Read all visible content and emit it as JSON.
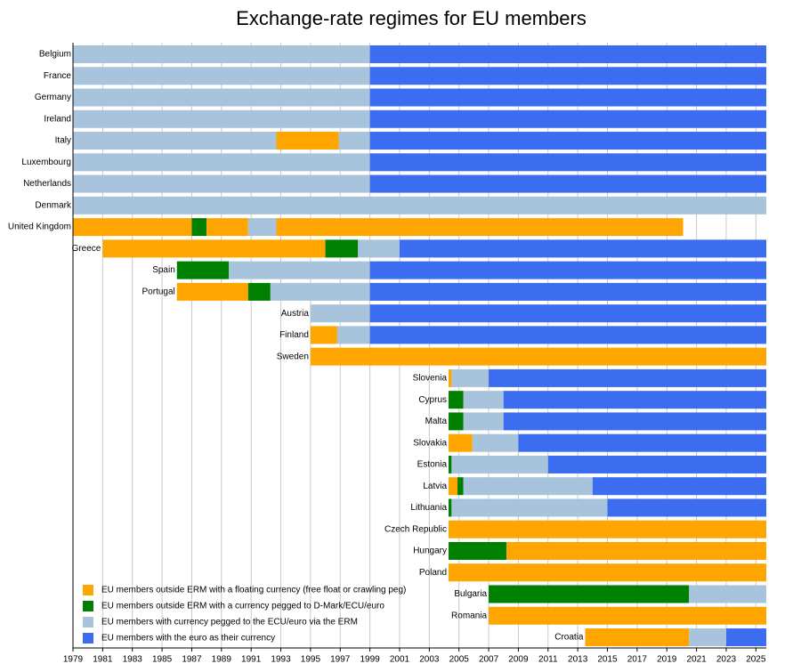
{
  "chart_data": {
    "type": "timeline",
    "title": "Exchange-rate regimes for EU members",
    "series": [
      {
        "name": "EU members outside ERM with a floating currency (free float or crawling peg)",
        "color": "#ffa500"
      },
      {
        "name": "EU members outside ERM with a currency pegged to D-Mark/ECU/euro",
        "color": "#008000"
      },
      {
        "name": "EU members with currency pegged to the ECU/euro via the ERM",
        "color": "#a7c4dc"
      },
      {
        "name": "EU members with the euro as their currency",
        "color": "#3c6cf0"
      }
    ],
    "rows": [
      {
        "label": "Belgium",
        "segments": [
          {
            "series": 2,
            "start": 1979,
            "end": 1999
          },
          {
            "series": 3,
            "start": 1999,
            "end": 2025.7
          }
        ]
      },
      {
        "label": "France",
        "segments": [
          {
            "series": 2,
            "start": 1979,
            "end": 1999
          },
          {
            "series": 3,
            "start": 1999,
            "end": 2025.7
          }
        ]
      },
      {
        "label": "Germany",
        "segments": [
          {
            "series": 2,
            "start": 1979,
            "end": 1999
          },
          {
            "series": 3,
            "start": 1999,
            "end": 2025.7
          }
        ]
      },
      {
        "label": "Ireland",
        "segments": [
          {
            "series": 2,
            "start": 1979,
            "end": 1999
          },
          {
            "series": 3,
            "start": 1999,
            "end": 2025.7
          }
        ]
      },
      {
        "label": "Italy",
        "segments": [
          {
            "series": 2,
            "start": 1979,
            "end": 1992.7
          },
          {
            "series": 0,
            "start": 1992.7,
            "end": 1996.9
          },
          {
            "series": 2,
            "start": 1996.9,
            "end": 1999
          },
          {
            "series": 3,
            "start": 1999,
            "end": 2025.7
          }
        ]
      },
      {
        "label": "Luxembourg",
        "segments": [
          {
            "series": 2,
            "start": 1979,
            "end": 1999
          },
          {
            "series": 3,
            "start": 1999,
            "end": 2025.7
          }
        ]
      },
      {
        "label": "Netherlands",
        "segments": [
          {
            "series": 2,
            "start": 1979,
            "end": 1999
          },
          {
            "series": 3,
            "start": 1999,
            "end": 2025.7
          }
        ]
      },
      {
        "label": "Denmark",
        "segments": [
          {
            "series": 2,
            "start": 1979,
            "end": 2025.7
          }
        ]
      },
      {
        "label": "United Kingdom",
        "segments": [
          {
            "series": 0,
            "start": 1979,
            "end": 1987
          },
          {
            "series": 1,
            "start": 1987,
            "end": 1988
          },
          {
            "series": 0,
            "start": 1988,
            "end": 1990.8
          },
          {
            "series": 2,
            "start": 1990.8,
            "end": 1992.7
          },
          {
            "series": 0,
            "start": 1992.7,
            "end": 2020.1
          }
        ]
      },
      {
        "label": "Greece",
        "segments": [
          {
            "series": 0,
            "start": 1981,
            "end": 1996
          },
          {
            "series": 1,
            "start": 1996,
            "end": 1998.2
          },
          {
            "series": 2,
            "start": 1998.2,
            "end": 2001
          },
          {
            "series": 3,
            "start": 2001,
            "end": 2025.7
          }
        ]
      },
      {
        "label": "Spain",
        "segments": [
          {
            "series": 1,
            "start": 1986,
            "end": 1989.5
          },
          {
            "series": 2,
            "start": 1989.5,
            "end": 1999
          },
          {
            "series": 3,
            "start": 1999,
            "end": 2025.7
          }
        ]
      },
      {
        "label": "Portugal",
        "segments": [
          {
            "series": 0,
            "start": 1986,
            "end": 1990.8
          },
          {
            "series": 1,
            "start": 1990.8,
            "end": 1992.3
          },
          {
            "series": 2,
            "start": 1992.3,
            "end": 1999
          },
          {
            "series": 3,
            "start": 1999,
            "end": 2025.7
          }
        ]
      },
      {
        "label": "Austria",
        "segments": [
          {
            "series": 2,
            "start": 1995,
            "end": 1999
          },
          {
            "series": 3,
            "start": 1999,
            "end": 2025.7
          }
        ]
      },
      {
        "label": "Finland",
        "segments": [
          {
            "series": 0,
            "start": 1995,
            "end": 1996.8
          },
          {
            "series": 2,
            "start": 1996.8,
            "end": 1999
          },
          {
            "series": 3,
            "start": 1999,
            "end": 2025.7
          }
        ]
      },
      {
        "label": "Sweden",
        "segments": [
          {
            "series": 0,
            "start": 1995,
            "end": 2025.7
          }
        ]
      },
      {
        "label": "Slovenia",
        "segments": [
          {
            "series": 0,
            "start": 2004.3,
            "end": 2004.5
          },
          {
            "series": 2,
            "start": 2004.5,
            "end": 2007
          },
          {
            "series": 3,
            "start": 2007,
            "end": 2025.7
          }
        ]
      },
      {
        "label": "Cyprus",
        "segments": [
          {
            "series": 1,
            "start": 2004.3,
            "end": 2005.3
          },
          {
            "series": 2,
            "start": 2005.3,
            "end": 2008
          },
          {
            "series": 3,
            "start": 2008,
            "end": 2025.7
          }
        ]
      },
      {
        "label": "Malta",
        "segments": [
          {
            "series": 1,
            "start": 2004.3,
            "end": 2005.3
          },
          {
            "series": 2,
            "start": 2005.3,
            "end": 2008
          },
          {
            "series": 3,
            "start": 2008,
            "end": 2025.7
          }
        ]
      },
      {
        "label": "Slovakia",
        "segments": [
          {
            "series": 0,
            "start": 2004.3,
            "end": 2005.9
          },
          {
            "series": 2,
            "start": 2005.9,
            "end": 2009
          },
          {
            "series": 3,
            "start": 2009,
            "end": 2025.7
          }
        ]
      },
      {
        "label": "Estonia",
        "segments": [
          {
            "series": 1,
            "start": 2004.3,
            "end": 2004.5
          },
          {
            "series": 2,
            "start": 2004.5,
            "end": 2011
          },
          {
            "series": 3,
            "start": 2011,
            "end": 2025.7
          }
        ]
      },
      {
        "label": "Latvia",
        "segments": [
          {
            "series": 0,
            "start": 2004.3,
            "end": 2004.9
          },
          {
            "series": 1,
            "start": 2004.9,
            "end": 2005.3
          },
          {
            "series": 2,
            "start": 2005.3,
            "end": 2014
          },
          {
            "series": 3,
            "start": 2014,
            "end": 2025.7
          }
        ]
      },
      {
        "label": "Lithuania",
        "segments": [
          {
            "series": 1,
            "start": 2004.3,
            "end": 2004.5
          },
          {
            "series": 2,
            "start": 2004.5,
            "end": 2015
          },
          {
            "series": 3,
            "start": 2015,
            "end": 2025.7
          }
        ]
      },
      {
        "label": "Czech Republic",
        "segments": [
          {
            "series": 0,
            "start": 2004.3,
            "end": 2025.7
          }
        ]
      },
      {
        "label": "Hungary",
        "segments": [
          {
            "series": 1,
            "start": 2004.3,
            "end": 2008.2
          },
          {
            "series": 0,
            "start": 2008.2,
            "end": 2025.7
          }
        ]
      },
      {
        "label": "Poland",
        "segments": [
          {
            "series": 0,
            "start": 2004.3,
            "end": 2025.7
          }
        ]
      },
      {
        "label": "Bulgaria",
        "segments": [
          {
            "series": 1,
            "start": 2007,
            "end": 2020.5
          },
          {
            "series": 2,
            "start": 2020.5,
            "end": 2025.7
          }
        ]
      },
      {
        "label": "Romania",
        "segments": [
          {
            "series": 0,
            "start": 2007,
            "end": 2025.7
          }
        ]
      },
      {
        "label": "Croatia",
        "segments": [
          {
            "series": 0,
            "start": 2013.5,
            "end": 2020.5
          },
          {
            "series": 2,
            "start": 2020.5,
            "end": 2023
          },
          {
            "series": 3,
            "start": 2023,
            "end": 2025.7
          }
        ]
      }
    ],
    "xlim": [
      1979,
      2025.7
    ],
    "xticks": [
      1979,
      1981,
      1983,
      1985,
      1987,
      1989,
      1991,
      1993,
      1995,
      1997,
      1999,
      2001,
      2003,
      2005,
      2007,
      2009,
      2011,
      2013,
      2015,
      2017,
      2019,
      2021,
      2023,
      2025
    ],
    "grid": true
  }
}
